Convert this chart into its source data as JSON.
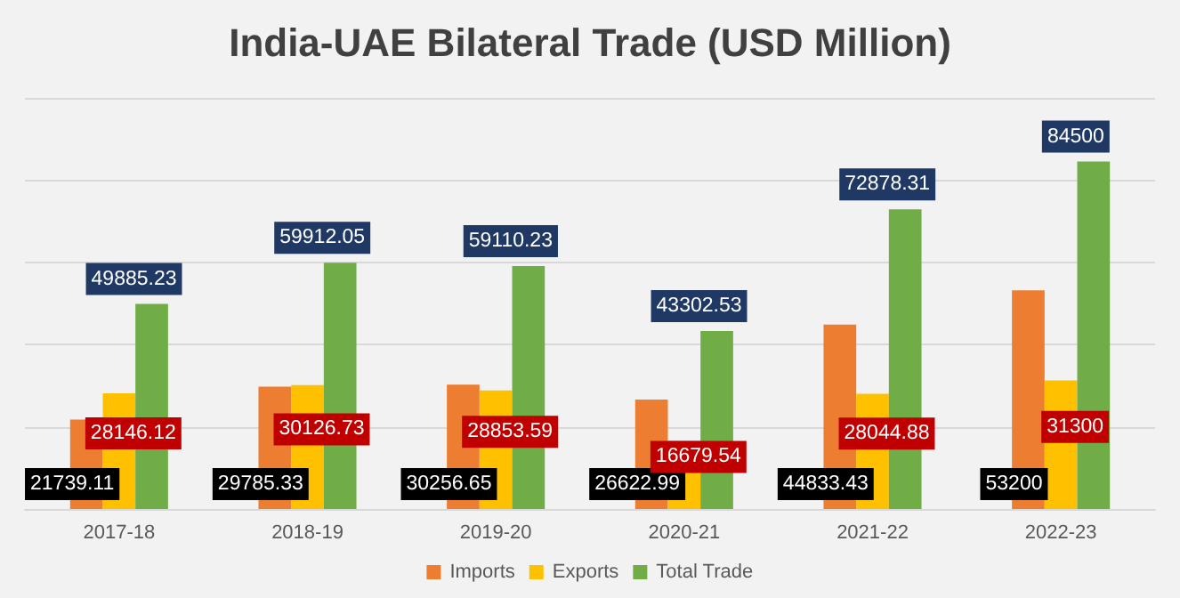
{
  "chart_data": {
    "type": "bar",
    "title": "India-UAE Bilateral Trade (USD Million)",
    "categories": [
      "2017-18",
      "2018-19",
      "2019-20",
      "2020-21",
      "2021-22",
      "2022-23"
    ],
    "series": [
      {
        "name": "Imports",
        "color": "#ed7d31",
        "values": [
          21739.11,
          29785.33,
          30256.65,
          26622.99,
          44833.43,
          53200
        ]
      },
      {
        "name": "Exports",
        "color": "#ffc000",
        "values": [
          28146.12,
          30126.73,
          28853.59,
          16679.54,
          28044.88,
          31300
        ]
      },
      {
        "name": "Total Trade",
        "color": "#70ad47",
        "values": [
          49885.23,
          59912.05,
          59110.23,
          43302.53,
          72878.31,
          84500
        ]
      }
    ],
    "data_labels": true,
    "grid": "y",
    "legend": "bottom"
  }
}
